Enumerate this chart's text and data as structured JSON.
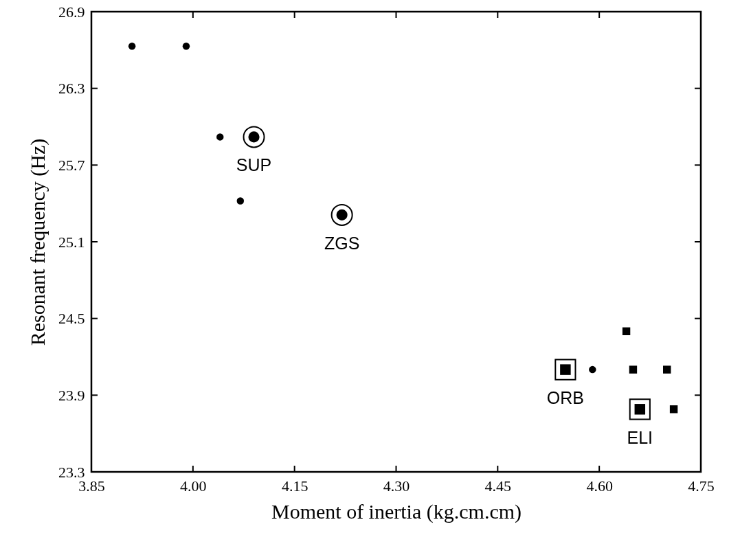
{
  "chart_data": {
    "type": "scatter",
    "xlabel": "Moment of inertia (kg.cm.cm)",
    "ylabel": "Resonant frequency (Hz)",
    "xlim": [
      3.85,
      4.75
    ],
    "xticks": [
      {
        "value": 3.85,
        "label": "3.85"
      },
      {
        "value": 4.0,
        "label": "4.00"
      },
      {
        "value": 4.15,
        "label": "4.15"
      },
      {
        "value": 4.3,
        "label": "4.30"
      },
      {
        "value": 4.45,
        "label": "4.45"
      },
      {
        "value": 4.6,
        "label": "4.60"
      },
      {
        "value": 4.75,
        "label": "4.75"
      }
    ],
    "ylim": [
      23.3,
      26.9
    ],
    "yticks": [
      23.3,
      23.9,
      24.5,
      25.1,
      25.7,
      26.3,
      26.9
    ],
    "grid": false,
    "series": [
      {
        "color": "#000000",
        "marker": "circle",
        "x": [
          3.91,
          3.99,
          4.04,
          4.07,
          4.59
        ],
        "values": [
          26.63,
          26.63,
          25.92,
          25.42,
          24.1
        ]
      },
      {
        "color": "#000000",
        "marker": "circle",
        "x": [
          4.09,
          4.22
        ],
        "values": [
          25.92,
          25.31
        ]
      },
      {
        "color": "#000000",
        "marker": "square",
        "x": [
          4.64,
          4.65,
          4.7,
          4.71
        ],
        "values": [
          24.4,
          24.1,
          24.1,
          23.79
        ]
      },
      {
        "color": "#000000",
        "marker": "square",
        "x": [
          4.55,
          4.66
        ],
        "values": [
          24.1,
          23.79
        ]
      }
    ],
    "annotations": [
      {
        "text": "SUP",
        "x": 4.09,
        "y": 25.92
      },
      {
        "text": "ZGS",
        "x": 4.22,
        "y": 25.31
      },
      {
        "text": "ORB",
        "x": 4.55,
        "y": 24.1
      },
      {
        "text": "ELI",
        "x": 4.66,
        "y": 23.79
      }
    ]
  }
}
